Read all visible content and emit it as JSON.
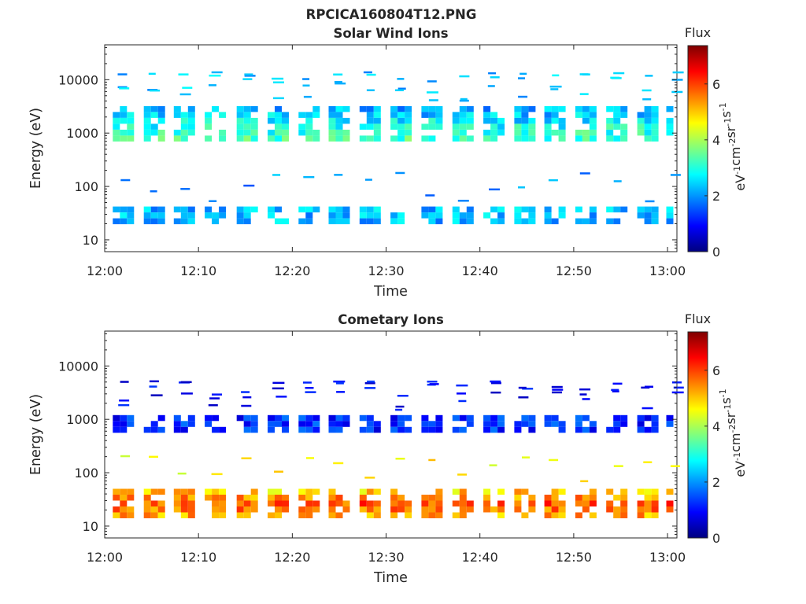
{
  "figure": {
    "title": "RPCICA160804T12.PNG"
  },
  "chart_data": [
    {
      "type": "heatmap",
      "title": "Solar Wind Ions",
      "xlabel": "Time",
      "ylabel": "Energy (eV)",
      "x_ticks": [
        "12:00",
        "12:10",
        "12:20",
        "12:30",
        "12:40",
        "12:50",
        "13:00"
      ],
      "x_range_minutes": [
        0,
        61
      ],
      "y_scale": "log",
      "y_ticks": [
        "10",
        "100",
        "1000",
        "10000"
      ],
      "y_range": [
        6,
        45000
      ],
      "colorbar": {
        "label_top": "Flux",
        "unit": "eV-1cm-2sr-1s-1",
        "ticks": [
          "0",
          "2",
          "4",
          "6"
        ],
        "range": [
          0,
          7.4
        ]
      },
      "sweep_centers_min": [
        2,
        5.3,
        8.5,
        11.8,
        15.2,
        18.5,
        21.8,
        25,
        28.3,
        31.6,
        34.9,
        38.2,
        41.5,
        44.8,
        48,
        51.3,
        54.6,
        57.9,
        61
      ],
      "bands": [
        {
          "name": "main",
          "e_low": 700,
          "e_high": 3200,
          "flux": 2.6
        },
        {
          "name": "low",
          "e_low": 20,
          "e_high": 42,
          "flux": 2.3
        }
      ]
    },
    {
      "type": "heatmap",
      "title": "Cometary Ions",
      "xlabel": "Time",
      "ylabel": "Energy (eV)",
      "x_ticks": [
        "12:00",
        "12:10",
        "12:20",
        "12:30",
        "12:40",
        "12:50",
        "13:00"
      ],
      "x_range_minutes": [
        0,
        61
      ],
      "y_scale": "log",
      "y_ticks": [
        "10",
        "100",
        "1000",
        "10000"
      ],
      "y_range": [
        6,
        45000
      ],
      "colorbar": {
        "label_top": "Flux",
        "unit": "eV-1cm-2sr-1s-1",
        "ticks": [
          "0",
          "2",
          "4",
          "6"
        ],
        "range": [
          0,
          7.4
        ]
      },
      "sweep_centers_min": [
        2,
        5.3,
        8.5,
        11.8,
        15.2,
        18.5,
        21.8,
        25,
        28.3,
        31.6,
        34.9,
        38.2,
        41.5,
        44.8,
        48,
        51.3,
        54.6,
        57.9,
        61
      ],
      "bands": [
        {
          "name": "main",
          "e_low": 700,
          "e_high": 1200,
          "flux": 1.2
        },
        {
          "name": "low",
          "e_low": 16,
          "e_high": 50,
          "flux": 5.0
        }
      ]
    }
  ]
}
